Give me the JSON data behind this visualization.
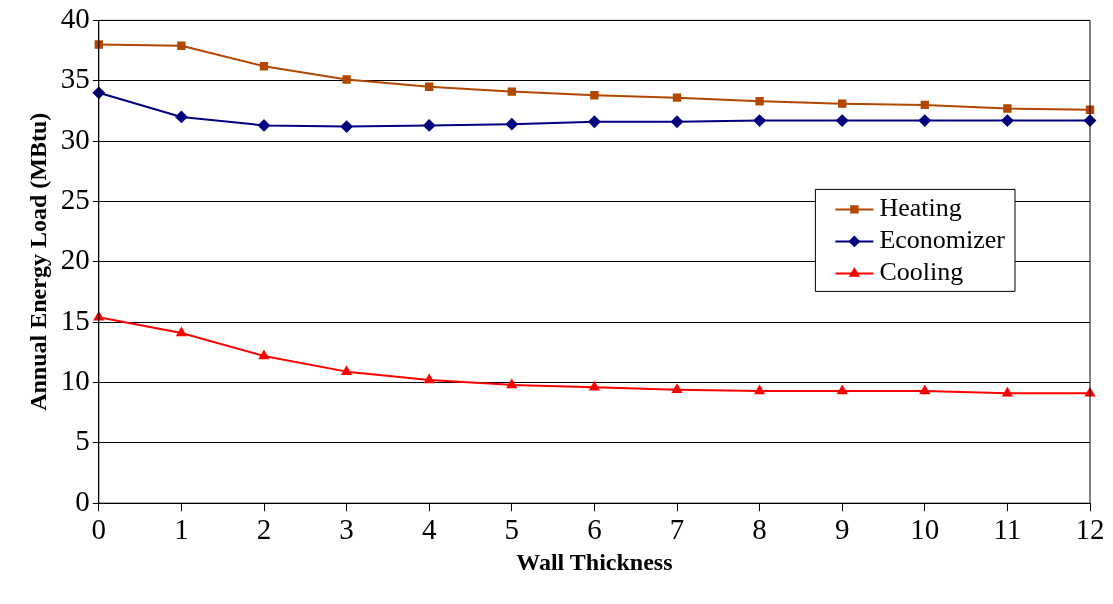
{
  "chart_data": {
    "type": "line",
    "xlabel": "Wall Thickness",
    "ylabel": "Annual Energy Load (MBtu)",
    "x": [
      0,
      1,
      2,
      3,
      4,
      5,
      6,
      7,
      8,
      9,
      10,
      11,
      12
    ],
    "xlim": [
      0,
      12
    ],
    "xticks": [
      0,
      1,
      2,
      3,
      4,
      5,
      6,
      7,
      8,
      9,
      10,
      11,
      12
    ],
    "ylim": [
      0,
      40
    ],
    "yticks": [
      0,
      5,
      10,
      15,
      20,
      25,
      30,
      35,
      40
    ],
    "grid": "y",
    "legend": "right",
    "line_style": "solid",
    "series": [
      {
        "name": "Heating",
        "color": "#b34700",
        "marker": "square",
        "values": [
          38.0,
          37.9,
          36.2,
          35.1,
          34.5,
          34.1,
          33.8,
          33.6,
          33.3,
          33.1,
          33.0,
          32.7,
          32.6
        ]
      },
      {
        "name": "Economizer",
        "color": "#000080",
        "marker": "diamond",
        "values": [
          34.0,
          32.0,
          31.3,
          31.2,
          31.3,
          31.4,
          31.6,
          31.6,
          31.7,
          31.7,
          31.7,
          31.7,
          31.7
        ]
      },
      {
        "name": "Cooling",
        "color": "#ff0000",
        "marker": "triangle",
        "values": [
          15.4,
          14.1,
          12.2,
          10.9,
          10.2,
          9.8,
          9.6,
          9.4,
          9.3,
          9.3,
          9.3,
          9.1,
          9.1
        ]
      }
    ]
  }
}
